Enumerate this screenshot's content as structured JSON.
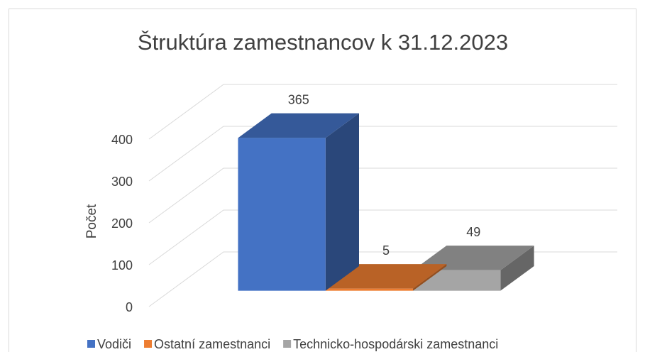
{
  "chart_data": {
    "type": "bar3d",
    "title": "Štruktúra zamestnancov k 31.12.2023",
    "y_label": "Počet",
    "categories": [
      "Vodiči",
      "Ostatní zamestnanci",
      "Technicko-hospodárski zamestnanci"
    ],
    "values": [
      365,
      5,
      49
    ],
    "colors": [
      "#4472c4",
      "#ed7d31",
      "#a5a5a5"
    ],
    "ylim": [
      0,
      400
    ],
    "yticks": [
      0,
      100,
      200,
      300,
      400
    ],
    "grid": true,
    "legend": "bottom"
  }
}
